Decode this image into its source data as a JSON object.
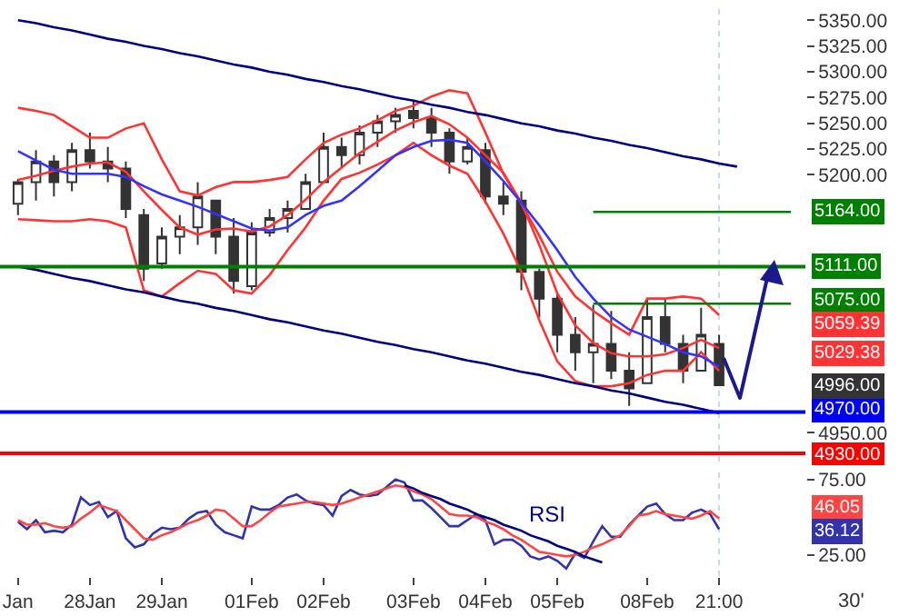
{
  "chart_data": [
    {
      "type": "candlestick",
      "color": "#333333",
      "categories": [
        "Jan",
        null,
        null,
        null,
        "28Jan",
        null,
        null,
        null,
        "29Jan",
        null,
        null,
        null,
        null,
        "01Feb",
        null,
        null,
        null,
        "02Feb",
        null,
        null,
        null,
        null,
        "03Feb",
        null,
        null,
        null,
        "04Feb",
        null,
        null,
        null,
        "05Feb",
        null,
        null,
        null,
        null,
        "08Feb",
        null,
        null,
        null,
        "21:00",
        null,
        null,
        null,
        null
      ],
      "ohlc": [
        [
          5172,
          5196,
          5161,
          5193
        ],
        [
          5193,
          5224,
          5175,
          5213
        ],
        [
          5213,
          5219,
          5179,
          5193
        ],
        [
          5193,
          5231,
          5184,
          5224
        ],
        [
          5224,
          5241,
          5206,
          5213
        ],
        [
          5213,
          5227,
          5193,
          5206
        ],
        [
          5206,
          5213,
          5158,
          5167
        ],
        [
          5161,
          5167,
          5097,
          5109
        ],
        [
          5114,
          5149,
          5109,
          5140
        ],
        [
          5140,
          5161,
          5123,
          5149
        ],
        [
          5149,
          5193,
          5132,
          5179
        ],
        [
          5175,
          5175,
          5123,
          5140
        ],
        [
          5140,
          5158,
          5085,
          5097
        ],
        [
          5092,
          5154,
          5088,
          5144
        ],
        [
          5144,
          5167,
          5140,
          5158
        ],
        [
          5158,
          5175,
          5144,
          5167
        ],
        [
          5167,
          5201,
          5167,
          5193
        ],
        [
          5193,
          5241,
          5193,
          5227
        ],
        [
          5227,
          5236,
          5206,
          5219
        ],
        [
          5219,
          5248,
          5210,
          5241
        ],
        [
          5241,
          5258,
          5227,
          5252
        ],
        [
          5252,
          5265,
          5241,
          5258
        ],
        [
          5262,
          5271,
          5245,
          5255
        ],
        [
          5255,
          5265,
          5227,
          5241
        ],
        [
          5241,
          5245,
          5201,
          5213
        ],
        [
          5213,
          5236,
          5210,
          5227
        ],
        [
          5224,
          5231,
          5172,
          5179
        ],
        [
          5179,
          5193,
          5161,
          5172
        ],
        [
          5175,
          5184,
          5088,
          5106
        ],
        [
          5106,
          5109,
          5062,
          5080
        ],
        [
          5080,
          5085,
          5028,
          5045
        ],
        [
          5045,
          5062,
          5010,
          5028
        ],
        [
          5028,
          5074,
          4998,
          5036
        ],
        [
          5036,
          5068,
          5002,
          5010
        ],
        [
          5010,
          5028,
          4976,
          4993
        ],
        [
          4998,
          5080,
          4998,
          5062
        ],
        [
          5062,
          5080,
          5028,
          5036
        ],
        [
          5036,
          5045,
          4998,
          5010
        ],
        [
          5010,
          5071,
          5010,
          5045
        ],
        [
          5036,
          5045,
          4996,
          4996
        ],
        null,
        null,
        null,
        null
      ],
      "series": [
        {
          "type": "line",
          "color": "#ff3333",
          "values": [
            5265,
            5262,
            5258,
            5247,
            5236,
            5236,
            5245,
            5250,
            5215,
            5184,
            5180,
            5188,
            5193,
            5193,
            5195,
            5198,
            5215,
            5231,
            5239,
            5245,
            5253,
            5262,
            5267,
            5276,
            5282,
            5279,
            5241,
            5201,
            5172,
            5141,
            5106,
            5082,
            5068,
            5056,
            5045,
            5080,
            5080,
            5082,
            5080,
            5064,
            null,
            null,
            null,
            null
          ]
        },
        {
          "type": "line",
          "color": "#ff3333",
          "values": [
            5195,
            5199,
            5204,
            5208,
            5211,
            5212,
            5203,
            5184,
            5166,
            5149,
            5142,
            5147,
            5148,
            5145,
            5150,
            5161,
            5176,
            5193,
            5207,
            5221,
            5232,
            5243,
            5251,
            5257,
            5249,
            5236,
            5219,
            5202,
            5173,
            5132,
            5085,
            5054,
            5037,
            5027,
            5024,
            5024,
            5026,
            5032,
            5040,
            5032,
            null,
            null,
            null,
            null
          ]
        },
        {
          "type": "line",
          "color": "#ff3333",
          "values": [
            5157,
            5156,
            5155,
            5155,
            5157,
            5155,
            5149,
            5088,
            5082,
            5095,
            5107,
            5104,
            5088,
            5085,
            5103,
            5127,
            5149,
            5175,
            5196,
            5202,
            5210,
            5219,
            5231,
            5219,
            5209,
            5201,
            5174,
            5143,
            5106,
            5059,
            5019,
            5000,
            4995,
            4995,
            4998,
            5006,
            5010,
            5010,
            5028,
            5010,
            null,
            null,
            null,
            null
          ]
        },
        {
          "type": "line",
          "color": "#3333ff",
          "values": [
            5223,
            5214,
            5205,
            5201,
            5201,
            5201,
            5198,
            5189,
            5181,
            5175,
            5169,
            5162,
            5155,
            5148,
            5146,
            5149,
            5161,
            5170,
            5175,
            5189,
            5204,
            5219,
            5227,
            5233,
            5234,
            5231,
            5213,
            5194,
            5173,
            5151,
            5127,
            5101,
            5080,
            5062,
            5050,
            5043,
            5036,
            5028,
            5024,
            5014,
            null,
            null,
            null,
            null
          ]
        },
        {
          "type": "line",
          "color": "#000080",
          "values": [
            5350,
            5347,
            5343,
            5340,
            5336,
            5332,
            5329,
            5325,
            5322,
            5318,
            5315,
            5311,
            5307,
            5304,
            5300,
            5297,
            5293,
            5290,
            5286,
            5283,
            5279,
            5275,
            5272,
            5268,
            5265,
            5261,
            5258,
            5254,
            5250,
            5247,
            5243,
            5240,
            5236,
            5233,
            5229,
            5226,
            5222,
            5218,
            5215,
            5211,
            5208,
            null,
            null,
            null
          ]
        },
        {
          "type": "line",
          "color": "#000080",
          "values": [
            5111,
            5108,
            5104,
            5100,
            5097,
            5093,
            5089,
            5086,
            5082,
            5078,
            5075,
            5071,
            5068,
            5064,
            5060,
            5057,
            5053,
            5049,
            5046,
            5042,
            5038,
            5035,
            5031,
            5028,
            5024,
            5020,
            5017,
            5013,
            5009,
            5006,
            5002,
            4998,
            4995,
            4991,
            4988,
            4984,
            4980,
            4977,
            4973,
            4969,
            null,
            null,
            null,
            null
          ]
        },
        {
          "type": "line",
          "color": "#008000",
          "values": [
            null,
            null,
            null,
            null,
            null,
            null,
            null,
            null,
            null,
            null,
            null,
            null,
            null,
            null,
            null,
            null,
            null,
            null,
            null,
            null,
            null,
            null,
            null,
            null,
            null,
            null,
            null,
            null,
            null,
            null,
            null,
            null,
            5164,
            5164,
            5164,
            5164,
            5164,
            5164,
            5164,
            5164,
            5164,
            5164,
            5164,
            5164
          ]
        },
        {
          "type": "line",
          "color": "#008000",
          "values": [
            null,
            null,
            null,
            null,
            null,
            null,
            null,
            null,
            null,
            null,
            null,
            null,
            null,
            null,
            null,
            null,
            null,
            null,
            null,
            null,
            null,
            null,
            null,
            null,
            null,
            null,
            null,
            null,
            null,
            null,
            null,
            null,
            5075,
            5075,
            5075,
            5075,
            5075,
            5075,
            5075,
            5075,
            5075,
            5075,
            5075,
            5075
          ]
        }
      ],
      "ylim": [
        4922,
        5366
      ],
      "yticks": [
        {
          "value": 5350,
          "label": "5350.00"
        },
        {
          "value": 5325,
          "label": "5325.00"
        },
        {
          "value": 5300,
          "label": "5300.00"
        },
        {
          "value": 5275,
          "label": "5275.00"
        },
        {
          "value": 5250,
          "label": "5250.00"
        },
        {
          "value": 5225,
          "label": "5225.00"
        },
        {
          "value": 5200,
          "label": "5200.00"
        },
        {
          "value": 4950,
          "label": "4950.00"
        }
      ],
      "tick_labels": "y",
      "ref_lines": [
        {
          "axis": "y",
          "value": 5111,
          "label": "5111.00",
          "color": "#008000"
        },
        {
          "axis": "y",
          "value": 4970,
          "label": "4970.00",
          "color": "#0000ff"
        },
        {
          "axis": "y",
          "value": 4930,
          "label": "4930.00",
          "color": "#ff0000"
        },
        {
          "axis": "x",
          "value": "21:00",
          "color": "#c8d8e8",
          "line_style": "dotted"
        }
      ],
      "annotations": [
        "5164.00",
        "5075.00",
        "5059.39",
        "5029.38",
        "4996.00"
      ]
    },
    {
      "type": "line",
      "categories": [
        "Jan",
        null,
        null,
        null,
        null,
        null,
        null,
        null,
        "28Jan",
        null,
        null,
        null,
        null,
        null,
        null,
        null,
        "29Jan",
        null,
        null,
        null,
        null,
        null,
        null,
        null,
        null,
        null,
        "01Feb",
        null,
        null,
        null,
        null,
        null,
        null,
        null,
        "02Feb",
        null,
        null,
        null,
        null,
        null,
        null,
        null,
        null,
        null,
        "03Feb",
        null,
        null,
        null,
        null,
        null,
        null,
        null,
        "04Feb",
        null,
        null,
        null,
        null,
        null,
        null,
        null,
        "05Feb",
        null,
        null,
        null,
        null,
        null,
        null,
        null,
        null,
        null,
        "08Feb",
        null,
        null,
        null,
        null,
        null,
        null,
        null,
        "21:00",
        null,
        null,
        null,
        null,
        null,
        null,
        null,
        null,
        null
      ],
      "series": [
        {
          "color": "#3333aa",
          "values": [
            47,
            42,
            48,
            40,
            41,
            40,
            45,
            63,
            58,
            60,
            50,
            54,
            36,
            30,
            32,
            39,
            43,
            42,
            43,
            49,
            53,
            54,
            45,
            40,
            38,
            36,
            57,
            55,
            55,
            58,
            63,
            65,
            61,
            59,
            58,
            51,
            64,
            68,
            65,
            64,
            65,
            70,
            75,
            73,
            61,
            61,
            56,
            50,
            44,
            44,
            48,
            52,
            48,
            32,
            35,
            35,
            31,
            24,
            22,
            24,
            21,
            16,
            26,
            23,
            34,
            44,
            37,
            37,
            45,
            51,
            57,
            59,
            52,
            48,
            48,
            53,
            55,
            52,
            42,
            null,
            null,
            null,
            null,
            null,
            null,
            null,
            null,
            null
          ]
        },
        {
          "color": "#ff4444",
          "values": [
            48,
            45,
            45,
            46,
            44,
            43,
            44,
            49,
            53,
            58,
            56,
            54,
            48,
            42,
            36,
            35,
            38,
            40,
            43,
            46,
            48,
            51,
            55,
            54,
            49,
            44,
            44,
            48,
            53,
            57,
            58,
            59,
            60,
            60,
            59,
            58,
            59,
            61,
            63,
            65,
            67,
            69,
            71,
            70,
            67,
            65,
            62,
            57,
            52,
            51,
            51,
            50,
            47,
            45,
            42,
            38,
            35,
            31,
            27,
            26,
            25,
            24,
            25,
            27,
            30,
            32,
            35,
            38,
            44,
            51,
            52,
            54,
            52,
            51,
            50,
            49,
            51,
            54,
            49,
            null,
            null,
            null,
            null,
            null,
            null,
            null,
            null,
            null
          ]
        },
        {
          "color": "#000080",
          "values": [
            null,
            null,
            null,
            null,
            null,
            null,
            null,
            null,
            null,
            null,
            null,
            null,
            null,
            null,
            null,
            null,
            null,
            null,
            null,
            null,
            null,
            null,
            null,
            null,
            null,
            null,
            null,
            null,
            null,
            null,
            null,
            null,
            null,
            null,
            null,
            null,
            null,
            null,
            null,
            null,
            null,
            null,
            null,
            71,
            69,
            66,
            64,
            62,
            59,
            57,
            55,
            52,
            50,
            48,
            45,
            43,
            41,
            38,
            36,
            34,
            31,
            29,
            27,
            24,
            22,
            20,
            null,
            null,
            null,
            null,
            null,
            null,
            null,
            null,
            null,
            null,
            null,
            null,
            null,
            null,
            null,
            null,
            null,
            null,
            null,
            null,
            null,
            null
          ]
        }
      ],
      "ylim": [
        11,
        82
      ],
      "yticks": [
        {
          "value": 75,
          "label": "75.00"
        },
        {
          "value": 25,
          "label": "25.00"
        }
      ],
      "ref_lines": [
        {
          "axis": "x",
          "value": "21:00",
          "color": "#c8d8e8",
          "line_style": "dotted"
        }
      ],
      "annotations": [
        "RSI",
        "30'",
        "46.05",
        "36.12"
      ]
    }
  ]
}
